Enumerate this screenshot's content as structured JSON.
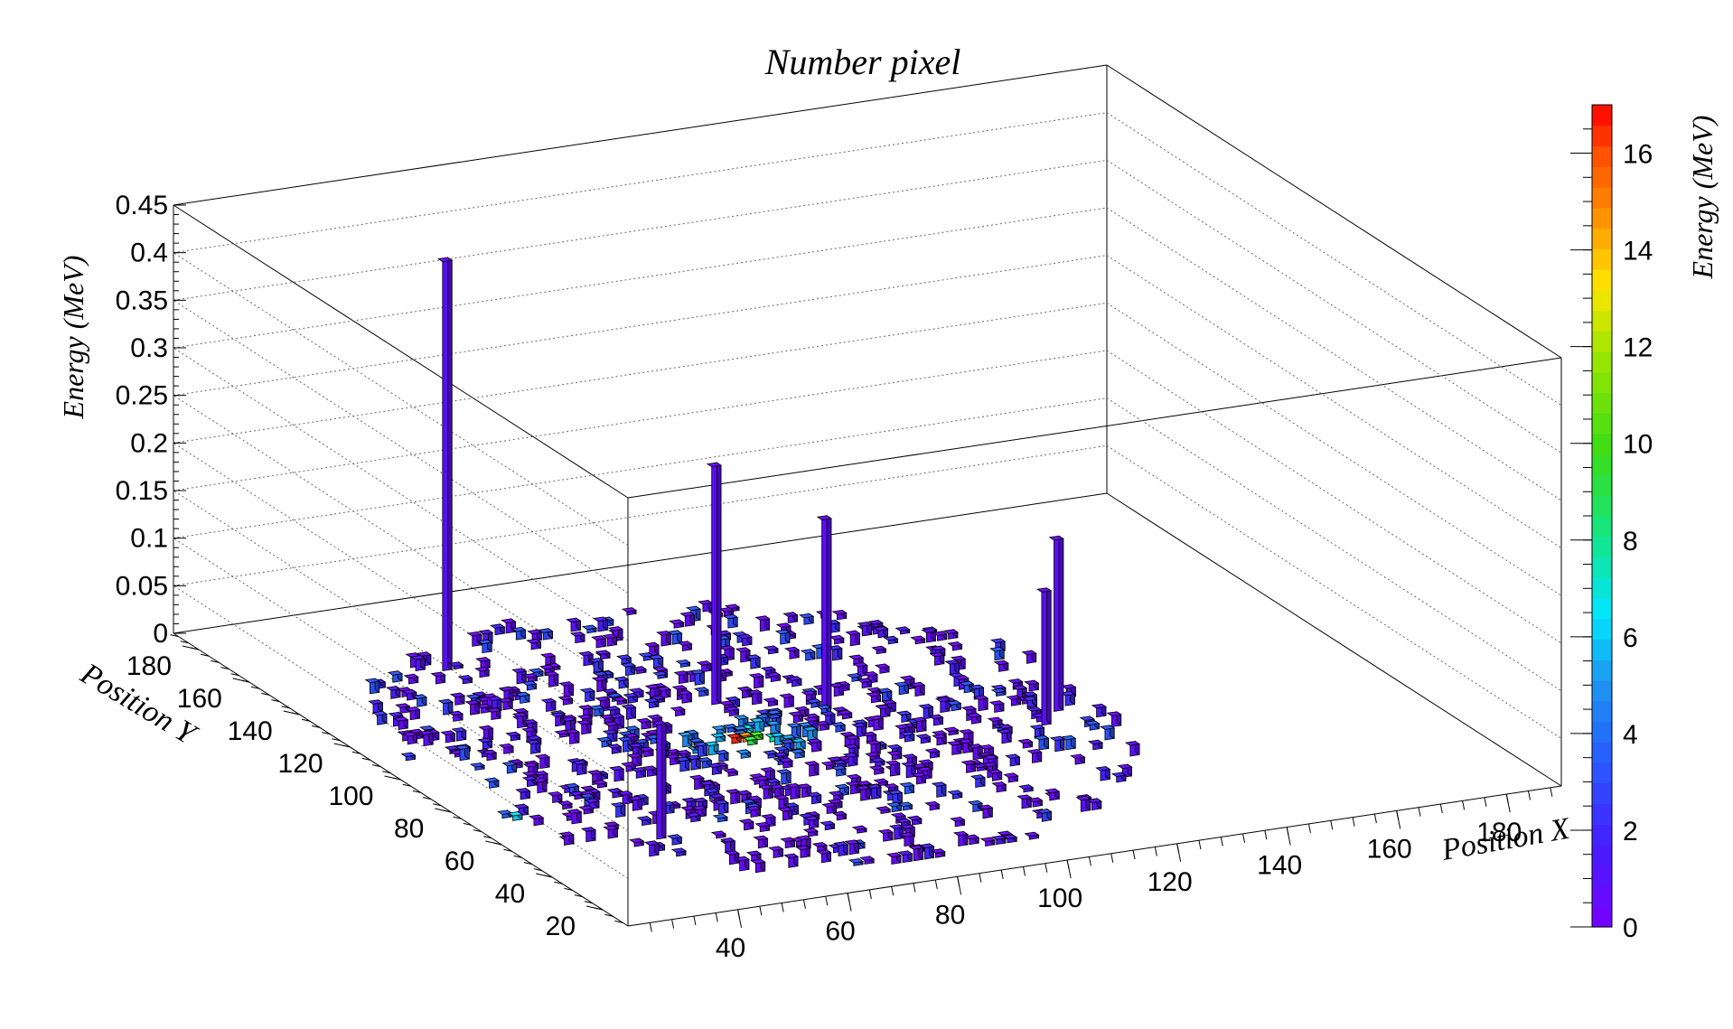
{
  "chart_data": {
    "type": "lego3d",
    "title": "Number pixel",
    "xlabel": "Position X",
    "ylabel": "Position Y",
    "zlabel": "Energy (MeV)",
    "colorbar_label": "Energy (MeV)",
    "xlim": [
      20,
      190
    ],
    "ylim": [
      10,
      190
    ],
    "zlim": [
      0,
      0.45
    ],
    "xticks": [
      "40",
      "60",
      "80",
      "100",
      "120",
      "140",
      "160",
      "180"
    ],
    "yticks": [
      "20",
      "40",
      "60",
      "80",
      "100",
      "120",
      "140",
      "160",
      "180"
    ],
    "zticks": [
      "0",
      "0.05",
      "0.1",
      "0.15",
      "0.2",
      "0.25",
      "0.3",
      "0.35",
      "0.4",
      "0.45"
    ],
    "colorbar_ticks": [
      "0",
      "2",
      "4",
      "6",
      "8",
      "10",
      "12",
      "14",
      "16"
    ],
    "colorbar_range": [
      0,
      17
    ],
    "grid": true,
    "tall_bins": [
      {
        "x": 52,
        "y": 152,
        "z": 0.43
      },
      {
        "x": 84,
        "y": 115,
        "z": 0.25
      },
      {
        "x": 99,
        "y": 104,
        "z": 0.2
      },
      {
        "x": 133,
        "y": 86,
        "z": 0.18
      },
      {
        "x": 128,
        "y": 80,
        "z": 0.14
      },
      {
        "x": 45,
        "y": 52,
        "z": 0.12
      }
    ],
    "hotspot_bins": [
      {
        "x": 78,
        "y": 94,
        "z": 0.006,
        "e": 16.5
      },
      {
        "x": 80,
        "y": 94,
        "z": 0.006,
        "e": 15.0
      },
      {
        "x": 82,
        "y": 94,
        "z": 0.005,
        "e": 10.0
      },
      {
        "x": 80,
        "y": 92,
        "z": 0.005,
        "e": 9.0
      },
      {
        "x": 84,
        "y": 92,
        "z": 0.005,
        "e": 7.5
      },
      {
        "x": 76,
        "y": 96,
        "z": 0.005,
        "e": 5.5
      },
      {
        "x": 86,
        "y": 90,
        "z": 0.005,
        "e": 5.0
      },
      {
        "x": 82,
        "y": 98,
        "z": 0.005,
        "e": 6.5
      },
      {
        "x": 28,
        "y": 72,
        "z": 0.005,
        "e": 6.0
      },
      {
        "x": 27,
        "y": 74,
        "z": 0.004,
        "e": 3.5
      },
      {
        "x": 26,
        "y": 110,
        "z": 0.004,
        "e": 2.5
      }
    ],
    "background_bins": {
      "count": 620,
      "z_range": [
        0.003,
        0.012
      ],
      "energy_range": [
        0.5,
        3.5
      ]
    }
  }
}
